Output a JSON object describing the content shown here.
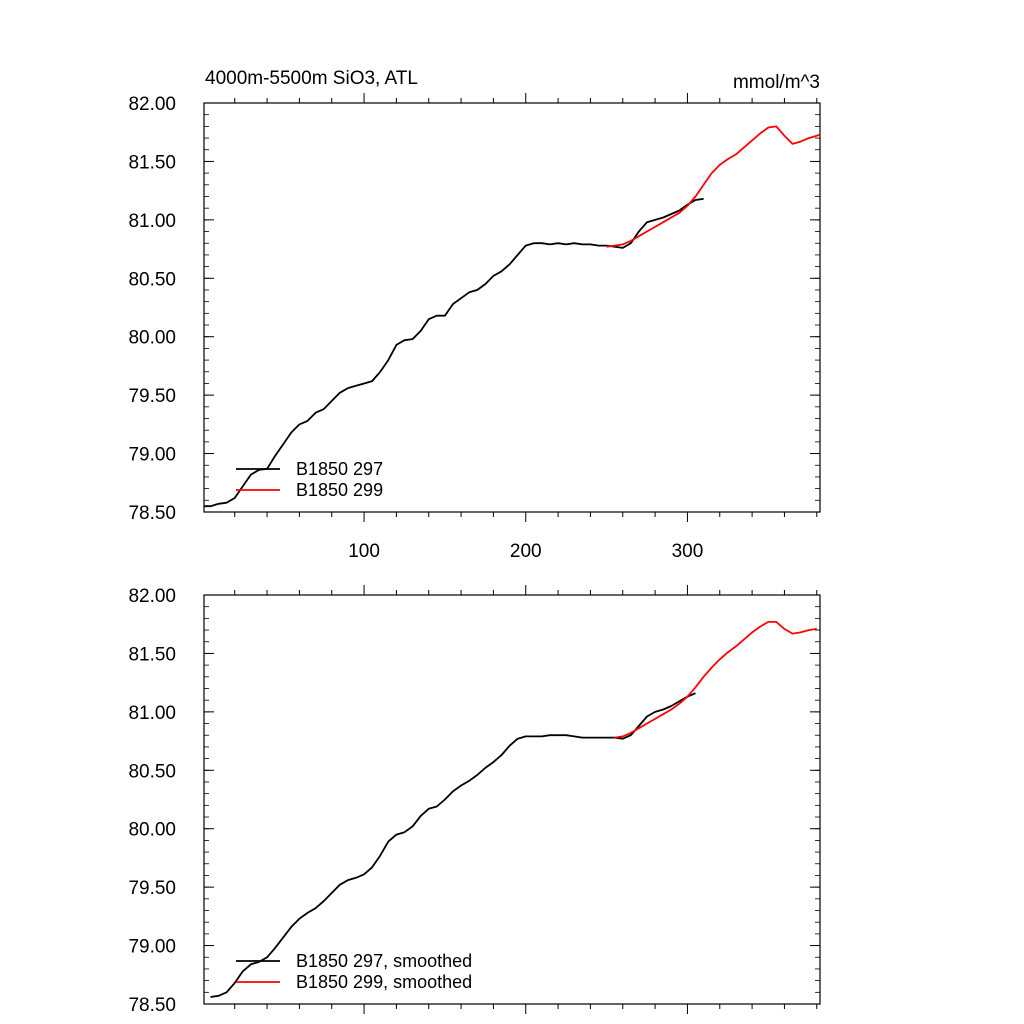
{
  "chart_data": [
    {
      "type": "line",
      "title": "4000m-5500m SiO3, ATL",
      "units": "mmol/m^3",
      "xlim": [
        1,
        382
      ],
      "ylim": [
        78.5,
        82.0
      ],
      "yticks": [
        "78.50",
        "79.00",
        "79.50",
        "80.00",
        "80.50",
        "81.00",
        "81.50",
        "82.00"
      ],
      "xticks": [
        "100",
        "200",
        "300"
      ],
      "legend": "bottom-left",
      "grid": false,
      "series": [
        {
          "name": "B1850 297",
          "color": "#000000",
          "x": [
            1,
            5,
            10,
            15,
            20,
            25,
            30,
            35,
            40,
            45,
            50,
            55,
            60,
            65,
            70,
            75,
            80,
            85,
            90,
            95,
            100,
            105,
            110,
            115,
            120,
            125,
            130,
            135,
            140,
            145,
            150,
            155,
            160,
            165,
            170,
            175,
            180,
            185,
            190,
            195,
            200,
            205,
            210,
            215,
            220,
            225,
            230,
            235,
            240,
            245,
            250,
            255,
            260,
            265,
            270,
            275,
            280,
            285,
            290,
            295,
            300,
            305,
            310
          ],
          "y": [
            78.55,
            78.55,
            78.57,
            78.58,
            78.62,
            78.72,
            78.82,
            78.86,
            78.87,
            78.98,
            79.08,
            79.18,
            79.25,
            79.28,
            79.35,
            79.38,
            79.45,
            79.52,
            79.56,
            79.58,
            79.6,
            79.62,
            79.7,
            79.8,
            79.93,
            79.97,
            79.98,
            80.05,
            80.15,
            80.18,
            80.18,
            80.28,
            80.33,
            80.38,
            80.4,
            80.45,
            80.52,
            80.56,
            80.62,
            80.7,
            80.78,
            80.8,
            80.8,
            80.79,
            80.8,
            80.79,
            80.8,
            80.79,
            80.79,
            80.78,
            80.78,
            80.77,
            80.76,
            80.8,
            80.9,
            80.98,
            81.0,
            81.02,
            81.05,
            81.08,
            81.13,
            81.17,
            81.18
          ]
        },
        {
          "name": "B1850 299",
          "color": "#ff0000",
          "x": [
            250,
            255,
            260,
            265,
            270,
            275,
            280,
            285,
            290,
            295,
            300,
            305,
            310,
            315,
            320,
            325,
            330,
            335,
            340,
            345,
            350,
            355,
            360,
            365,
            370,
            375,
            380,
            382
          ],
          "y": [
            80.77,
            80.78,
            80.79,
            80.82,
            80.86,
            80.9,
            80.94,
            80.98,
            81.02,
            81.06,
            81.12,
            81.2,
            81.3,
            81.4,
            81.47,
            81.52,
            81.56,
            81.62,
            81.68,
            81.74,
            81.79,
            81.8,
            81.72,
            81.65,
            81.67,
            81.7,
            81.72,
            81.73
          ]
        }
      ]
    },
    {
      "type": "line",
      "title": "",
      "xlim": [
        1,
        382
      ],
      "ylim": [
        78.5,
        82.0
      ],
      "yticks": [
        "78.50",
        "79.00",
        "79.50",
        "80.00",
        "80.50",
        "81.00",
        "81.50",
        "82.00"
      ],
      "legend": "bottom-left",
      "grid": false,
      "series": [
        {
          "name": "B1850 297, smoothed",
          "color": "#000000",
          "x": [
            5,
            10,
            15,
            20,
            25,
            30,
            35,
            40,
            45,
            50,
            55,
            60,
            65,
            70,
            75,
            80,
            85,
            90,
            95,
            100,
            105,
            110,
            115,
            120,
            125,
            130,
            135,
            140,
            145,
            150,
            155,
            160,
            165,
            170,
            175,
            180,
            185,
            190,
            195,
            200,
            205,
            210,
            215,
            220,
            225,
            230,
            235,
            240,
            245,
            250,
            255,
            260,
            265,
            270,
            275,
            280,
            285,
            290,
            295,
            300,
            305
          ],
          "y": [
            78.56,
            78.57,
            78.6,
            78.68,
            78.78,
            78.84,
            78.86,
            78.9,
            78.98,
            79.07,
            79.16,
            79.23,
            79.28,
            79.32,
            79.38,
            79.45,
            79.52,
            79.56,
            79.58,
            79.61,
            79.67,
            79.77,
            79.89,
            79.95,
            79.97,
            80.02,
            80.11,
            80.17,
            80.19,
            80.25,
            80.32,
            80.37,
            80.41,
            80.46,
            80.52,
            80.57,
            80.63,
            80.71,
            80.77,
            80.79,
            80.79,
            80.79,
            80.8,
            80.8,
            80.8,
            80.79,
            80.78,
            80.78,
            80.78,
            80.78,
            80.78,
            80.77,
            80.8,
            80.88,
            80.96,
            81.0,
            81.02,
            81.05,
            81.09,
            81.13,
            81.16
          ]
        },
        {
          "name": "B1850 299, smoothed",
          "color": "#ff0000",
          "x": [
            255,
            260,
            265,
            270,
            275,
            280,
            285,
            290,
            295,
            300,
            305,
            310,
            315,
            320,
            325,
            330,
            335,
            340,
            345,
            350,
            355,
            360,
            365,
            370,
            375,
            380
          ],
          "y": [
            80.78,
            80.79,
            80.82,
            80.86,
            80.9,
            80.94,
            80.98,
            81.02,
            81.07,
            81.13,
            81.21,
            81.3,
            81.38,
            81.45,
            81.51,
            81.56,
            81.62,
            81.68,
            81.73,
            81.77,
            81.77,
            81.71,
            81.67,
            81.68,
            81.7,
            81.71
          ]
        }
      ]
    }
  ]
}
